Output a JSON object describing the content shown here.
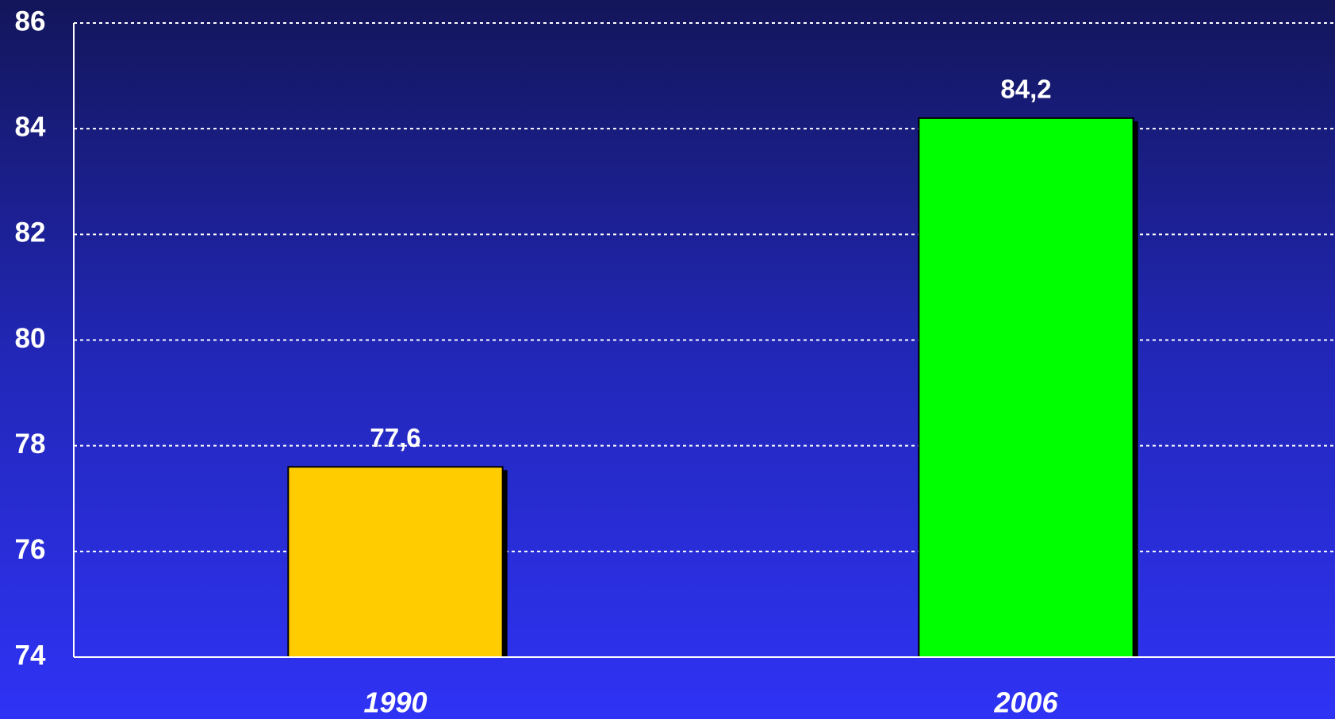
{
  "chart_data": {
    "type": "bar",
    "categories": [
      "1990",
      "2006"
    ],
    "values": [
      77.6,
      84.2
    ],
    "value_labels": [
      "77,6",
      "84,2"
    ],
    "colors": [
      "#ffcc00",
      "#00ff00"
    ],
    "ylim": [
      74,
      86
    ],
    "yticks": [
      74,
      76,
      78,
      80,
      82,
      84,
      86
    ],
    "grid": true
  }
}
